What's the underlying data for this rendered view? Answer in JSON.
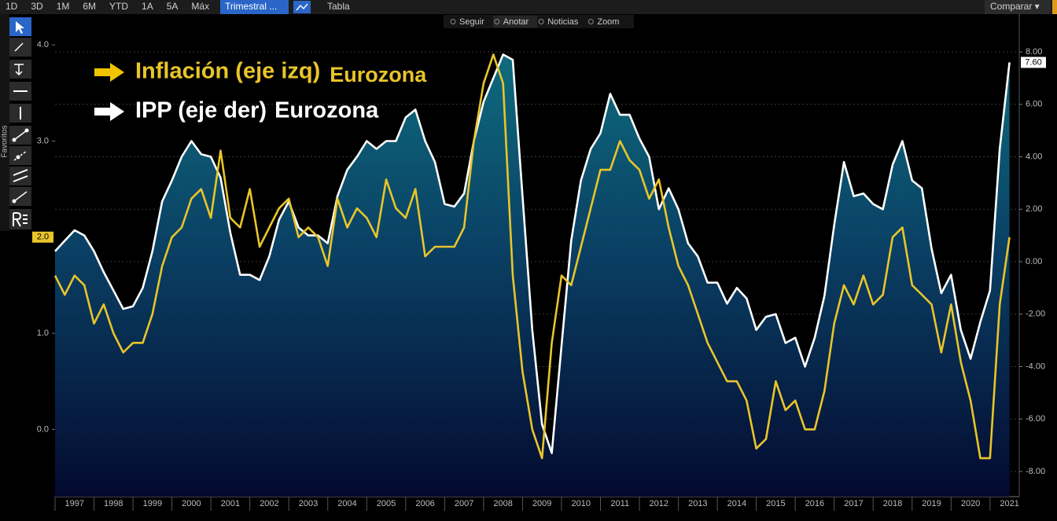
{
  "toolbar": {
    "ranges": [
      "1D",
      "3D",
      "1M",
      "6M",
      "YTD",
      "1A",
      "5A",
      "Máx"
    ],
    "period": "Trimestral ...",
    "table": "Tabla",
    "compare": "Comparar ▾"
  },
  "chart_tools": [
    "Seguir",
    "Anotar",
    "Noticias",
    "Zoom"
  ],
  "sidebar": {
    "label": "Favoritos"
  },
  "chart_data": {
    "type": "line",
    "x": [
      1997,
      1997.25,
      1997.5,
      1997.75,
      1998,
      1998.25,
      1998.5,
      1998.75,
      1999,
      1999.25,
      1999.5,
      1999.75,
      2000,
      2000.25,
      2000.5,
      2000.75,
      2001,
      2001.25,
      2001.5,
      2001.75,
      2002,
      2002.25,
      2002.5,
      2002.75,
      2003,
      2003.25,
      2003.5,
      2003.75,
      2004,
      2004.25,
      2004.5,
      2004.75,
      2005,
      2005.25,
      2005.5,
      2005.75,
      2006,
      2006.25,
      2006.5,
      2006.75,
      2007,
      2007.25,
      2007.5,
      2007.75,
      2008,
      2008.25,
      2008.5,
      2008.75,
      2009,
      2009.25,
      2009.5,
      2009.75,
      2010,
      2010.25,
      2010.5,
      2010.75,
      2011,
      2011.25,
      2011.5,
      2011.75,
      2012,
      2012.25,
      2012.5,
      2012.75,
      2013,
      2013.25,
      2013.5,
      2013.75,
      2014,
      2014.25,
      2014.5,
      2014.75,
      2015,
      2015.25,
      2015.5,
      2015.75,
      2016,
      2016.25,
      2016.5,
      2016.75,
      2017,
      2017.25,
      2017.5,
      2017.75,
      2018,
      2018.25,
      2018.5,
      2018.75,
      2019,
      2019.25,
      2019.5,
      2019.75,
      2020,
      2020.25,
      2020.5,
      2020.75,
      2021,
      2021.25,
      2021.5
    ],
    "xlim": [
      1997,
      2021.75
    ],
    "xticks": [
      1997,
      1998,
      1999,
      2000,
      2001,
      2002,
      2003,
      2004,
      2005,
      2006,
      2007,
      2008,
      2009,
      2010,
      2011,
      2012,
      2013,
      2014,
      2015,
      2016,
      2017,
      2018,
      2019,
      2020,
      2021
    ],
    "ylim": [
      -0.7,
      4.32
    ],
    "yticks": [
      {
        "value": 0,
        "label": "0.0"
      },
      {
        "value": 1,
        "label": "1.0"
      },
      {
        "value": 3,
        "label": "3.0"
      },
      {
        "value": 4,
        "label": "4.0"
      }
    ],
    "y2lim": [
      -8.96,
      9.44
    ],
    "y2ticks": [
      {
        "value": -8,
        "label": "-8.00"
      },
      {
        "value": -6,
        "label": "-6.00"
      },
      {
        "value": -4,
        "label": "-4.00"
      },
      {
        "value": -2,
        "label": "-2.00"
      },
      {
        "value": 0,
        "label": "0.00"
      },
      {
        "value": 2,
        "label": "2.00"
      },
      {
        "value": 4,
        "label": "4.00"
      },
      {
        "value": 6,
        "label": "6.00"
      },
      {
        "value": 8,
        "label": "8.00"
      }
    ],
    "grid": true,
    "series": [
      {
        "name": "Inflación (eje izq)",
        "region": "Eurozona",
        "color": "#e8c52a",
        "values": [
          1.6,
          1.4,
          1.6,
          1.5,
          1.1,
          1.3,
          1.0,
          0.8,
          0.9,
          0.9,
          1.2,
          1.7,
          2.0,
          2.1,
          2.4,
          2.5,
          2.2,
          2.9,
          2.2,
          2.1,
          2.5,
          1.9,
          2.1,
          2.3,
          2.4,
          2.0,
          2.1,
          2.0,
          1.7,
          2.4,
          2.1,
          2.3,
          2.2,
          2.0,
          2.6,
          2.3,
          2.2,
          2.5,
          1.8,
          1.9,
          1.9,
          1.9,
          2.1,
          3.0,
          3.6,
          3.9,
          3.6,
          1.6,
          0.6,
          0.0,
          -0.3,
          0.9,
          1.6,
          1.5,
          1.9,
          2.3,
          2.7,
          2.7,
          3.0,
          2.8,
          2.7,
          2.4,
          2.6,
          2.1,
          1.7,
          1.5,
          1.2,
          0.9,
          0.7,
          0.5,
          0.5,
          0.3,
          -0.2,
          -0.1,
          0.5,
          0.2,
          0.3,
          0.0,
          0.0,
          0.4,
          1.1,
          1.5,
          1.3,
          1.6,
          1.3,
          1.4,
          2.0,
          2.1,
          1.5,
          1.4,
          1.3,
          0.8,
          1.3,
          0.7,
          0.3,
          -0.3,
          -0.3,
          1.3,
          2.0
        ],
        "end_label": {
          "value": 2.0,
          "label": "2.0"
        }
      },
      {
        "name": "IPP (eje der)",
        "region": "Eurozona",
        "color": "#ffffff",
        "axis": "y2",
        "fill": true,
        "values": [
          0.4,
          0.8,
          1.2,
          1.0,
          0.4,
          -0.4,
          -1.1,
          -1.8,
          -1.7,
          -1.0,
          0.4,
          2.3,
          3.1,
          4.0,
          4.6,
          4.1,
          4.0,
          3.2,
          1.1,
          -0.5,
          -0.5,
          -0.7,
          0.2,
          1.6,
          2.3,
          1.3,
          1.0,
          1.0,
          0.7,
          2.5,
          3.5,
          4.0,
          4.6,
          4.3,
          4.6,
          4.6,
          5.5,
          5.8,
          4.6,
          3.8,
          2.2,
          2.1,
          2.6,
          4.6,
          6.1,
          7.0,
          7.9,
          7.7,
          2.5,
          -2.6,
          -6.2,
          -7.3,
          -3.2,
          0.8,
          3.1,
          4.3,
          4.9,
          6.4,
          5.6,
          5.6,
          4.7,
          4.0,
          2.0,
          2.8,
          2.0,
          0.7,
          0.2,
          -0.8,
          -0.8,
          -1.6,
          -1.0,
          -1.4,
          -2.6,
          -2.1,
          -2.0,
          -3.1,
          -2.9,
          -4.0,
          -2.9,
          -1.3,
          1.4,
          3.8,
          2.5,
          2.6,
          2.2,
          2.0,
          3.7,
          4.6,
          3.1,
          2.8,
          0.5,
          -1.2,
          -0.5,
          -2.6,
          -3.7,
          -2.3,
          -1.1,
          4.3,
          7.6
        ],
        "end_label": {
          "value": 7.6,
          "label": "7.60"
        }
      }
    ]
  }
}
